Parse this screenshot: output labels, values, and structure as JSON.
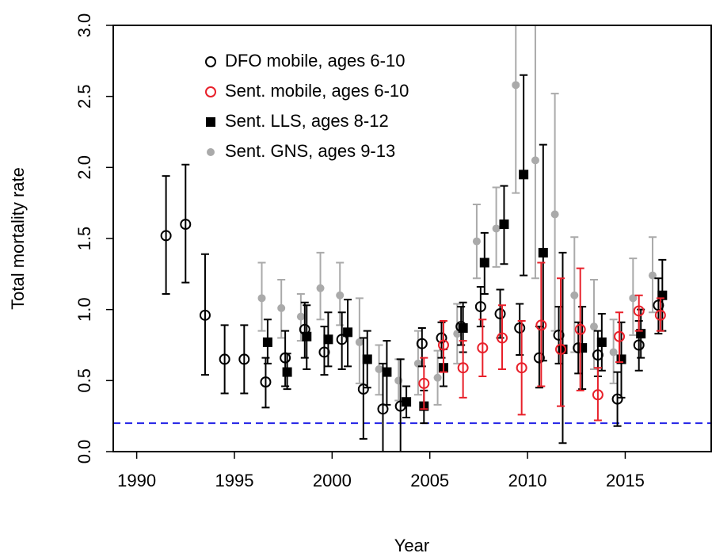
{
  "chart_data": {
    "type": "scatter",
    "x_label": "Year",
    "y_label": "Total mortality rate",
    "xlim": [
      1988.8,
      2019.4
    ],
    "ylim": [
      0,
      3
    ],
    "xticks": [
      1990,
      1995,
      2000,
      2005,
      2010,
      2015
    ],
    "yticks": [
      {
        "value": 0,
        "label": "0.0"
      },
      0.5,
      {
        "value": 1,
        "label": "1.0"
      },
      1.5,
      {
        "value": 2,
        "label": "2.0"
      },
      2.5,
      {
        "value": 3,
        "label": "3.0"
      }
    ],
    "reference_line": {
      "value": 0.2,
      "color": "#2323e6"
    },
    "series": [
      {
        "name": "Sent. GNS, ages 9-13",
        "color": "#aaaaaa",
        "marker": "dot",
        "x": [
          1996.4,
          1997.4,
          1998.4,
          1999.4,
          2000.4,
          2001.4,
          2002.4,
          2003.4,
          2004.4,
          2005.4,
          2006.4,
          2007.4,
          2008.4,
          2009.4,
          2010.4,
          2011.4,
          2012.4,
          2013.4,
          2014.4,
          2015.4,
          2016.4
        ],
        "values": [
          1.08,
          1.01,
          0.95,
          1.15,
          1.1,
          0.77,
          0.58,
          0.5,
          0.62,
          0.52,
          0.83,
          1.48,
          1.57,
          2.58,
          2.05,
          1.67,
          1.1,
          0.88,
          0.7,
          1.08,
          1.24
        ],
        "lower": [
          0.85,
          0.8,
          0.78,
          0.93,
          0.89,
          0.48,
          0.4,
          0.36,
          0.4,
          0.33,
          0.62,
          1.22,
          1.3,
          1.82,
          1.22,
          0.85,
          0.7,
          0.58,
          0.48,
          0.82,
          0.98
        ],
        "upper": [
          1.33,
          1.21,
          1.11,
          1.4,
          1.33,
          1.08,
          0.75,
          0.65,
          0.85,
          0.71,
          1.04,
          1.74,
          1.86,
          3.3,
          3.2,
          2.52,
          1.51,
          1.21,
          0.93,
          1.36,
          1.51
        ]
      },
      {
        "name": "Sent. LLS, ages 8-12",
        "color": "#000000",
        "marker": "square",
        "x": [
          1996.7,
          1997.7,
          1998.7,
          1999.8,
          2000.8,
          2001.8,
          2002.8,
          2003.8,
          2004.7,
          2005.7,
          2006.7,
          2007.8,
          2008.8,
          2009.8,
          2010.8,
          2011.8,
          2012.8,
          2013.8,
          2014.8,
          2015.8,
          2016.9
        ],
        "values": [
          0.77,
          0.56,
          0.81,
          0.79,
          0.84,
          0.65,
          0.56,
          0.35,
          0.32,
          0.59,
          0.87,
          1.33,
          1.6,
          1.95,
          1.4,
          0.72,
          0.73,
          0.77,
          0.65,
          0.83,
          1.1
        ],
        "lower": [
          0.62,
          0.44,
          0.58,
          0.6,
          0.6,
          0.45,
          0.33,
          0.24,
          0.2,
          0.46,
          0.7,
          1.11,
          1.32,
          1.24,
          0.64,
          0.06,
          0.44,
          0.57,
          0.38,
          0.66,
          0.85
        ],
        "upper": [
          0.93,
          0.69,
          1.03,
          0.98,
          1.07,
          0.85,
          0.78,
          0.46,
          0.43,
          0.72,
          1.05,
          1.54,
          1.87,
          2.65,
          2.16,
          1.4,
          1.02,
          0.97,
          0.91,
          1.0,
          1.35
        ]
      },
      {
        "name": "DFO mobile, ages 6-10",
        "color": "#000000",
        "marker": "circle",
        "x": [
          1991.5,
          1992.5,
          1993.5,
          1994.5,
          1995.5,
          1996.6,
          1997.6,
          1998.6,
          1999.6,
          2000.5,
          2001.6,
          2002.6,
          2003.5,
          2004.6,
          2005.6,
          2006.6,
          2007.6,
          2008.6,
          2009.6,
          2010.6,
          2011.6,
          2012.6,
          2013.6,
          2014.6,
          2015.7,
          2016.7
        ],
        "values": [
          1.52,
          1.6,
          0.96,
          0.65,
          0.65,
          0.49,
          0.66,
          0.86,
          0.7,
          0.79,
          0.44,
          0.3,
          0.32,
          0.76,
          0.8,
          0.88,
          1.02,
          0.97,
          0.87,
          0.66,
          0.82,
          0.73,
          0.68,
          0.37,
          0.75,
          1.03
        ],
        "lower": [
          1.11,
          1.19,
          0.54,
          0.41,
          0.41,
          0.31,
          0.46,
          0.66,
          0.54,
          0.58,
          0.09,
          0,
          0,
          0.6,
          0.66,
          0.75,
          0.88,
          0.8,
          0.68,
          0.45,
          0.62,
          0.55,
          0.53,
          0.18,
          0.57,
          0.83
        ],
        "upper": [
          1.94,
          2.02,
          1.39,
          0.89,
          0.89,
          0.66,
          0.85,
          1.05,
          0.88,
          0.98,
          0.8,
          0.62,
          0.65,
          0.87,
          0.91,
          1.02,
          1.16,
          1.14,
          1.04,
          0.88,
          1.02,
          0.91,
          0.85,
          0.56,
          0.92,
          1.22
        ]
      },
      {
        "name": "Sent. mobile, ages 6-10",
        "color": "#e8202a",
        "marker": "circle",
        "x": [
          2004.7,
          2005.7,
          2006.7,
          2007.7,
          2008.7,
          2009.7,
          2010.7,
          2011.7,
          2012.7,
          2013.6,
          2014.7,
          2015.7,
          2016.8
        ],
        "values": [
          0.48,
          0.75,
          0.59,
          0.73,
          0.8,
          0.59,
          0.89,
          0.72,
          0.86,
          0.4,
          0.81,
          0.99,
          0.96
        ],
        "lower": [
          0.3,
          0.56,
          0.38,
          0.53,
          0.58,
          0.26,
          0.46,
          0.32,
          0.43,
          0.22,
          0.63,
          0.85,
          0.85
        ],
        "upper": [
          0.66,
          0.92,
          0.78,
          0.93,
          1.03,
          0.92,
          1.33,
          1.22,
          1.29,
          0.59,
          0.98,
          1.1,
          1.08
        ]
      }
    ],
    "legend_order": [
      2,
      3,
      1,
      0
    ],
    "legend": "top-left"
  }
}
